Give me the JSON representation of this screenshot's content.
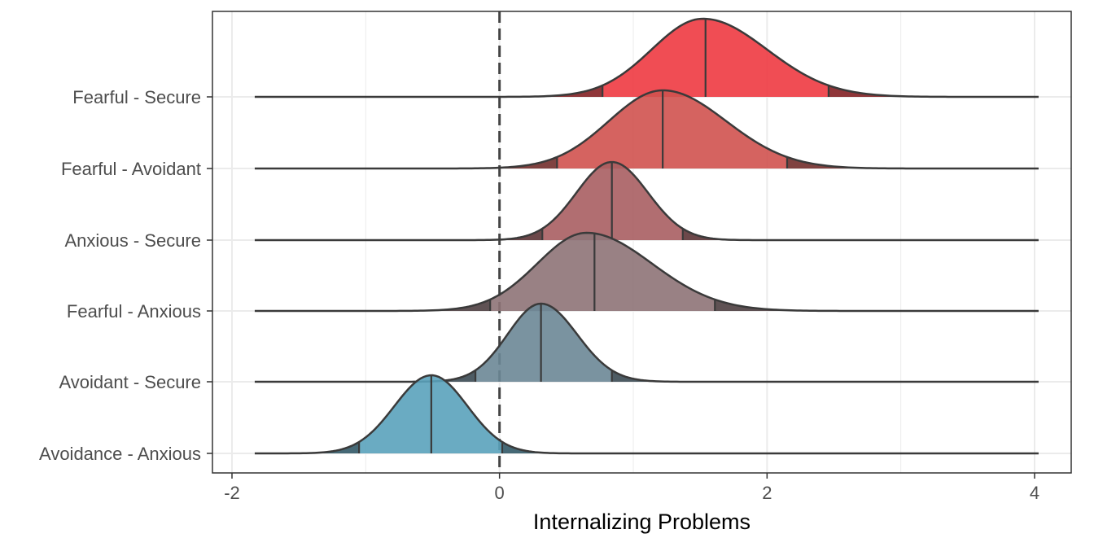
{
  "chart_data": {
    "type": "ridgeline",
    "title": "",
    "xlabel": "Internalizing Problems",
    "ylabel": "",
    "xlim": [
      -2.05,
      4.15
    ],
    "x_ticks": [
      -2,
      0,
      2,
      4
    ],
    "x_tick_labels": [
      "-2",
      "0",
      "2",
      "4"
    ],
    "reference_line_x": 0,
    "reference_line_style": "dashed",
    "grid": true,
    "categories": [
      "Fearful - Secure",
      "Fearful - Avoidant",
      "Anxious - Secure",
      "Fearful - Anxious",
      "Avoidant - Secure",
      "Avoidance - Anxious"
    ],
    "series": [
      {
        "name": "Fearful - Secure",
        "median": 1.54,
        "lower_95": 0.77,
        "upper_95": 2.46,
        "peak_x": 1.52,
        "color": "#ee3a41"
      },
      {
        "name": "Fearful - Avoidant",
        "median": 1.22,
        "lower_95": 0.43,
        "upper_95": 2.15,
        "peak_x": 1.22,
        "color": "#d0524f"
      },
      {
        "name": "Anxious - Secure",
        "median": 0.84,
        "lower_95": 0.32,
        "upper_95": 1.37,
        "peak_x": 0.84,
        "color": "#a85e62"
      },
      {
        "name": "Fearful - Anxious",
        "median": 0.71,
        "lower_95": -0.07,
        "upper_95": 1.61,
        "peak_x": 0.65,
        "color": "#8e7377"
      },
      {
        "name": "Avoidant - Secure",
        "median": 0.31,
        "lower_95": -0.18,
        "upper_95": 0.84,
        "peak_x": 0.31,
        "color": "#6c8796"
      },
      {
        "name": "Avoidance - Anxious",
        "median": -0.51,
        "lower_95": -1.05,
        "upper_95": 0.02,
        "peak_x": -0.51,
        "color": "#5aa2bb"
      }
    ]
  }
}
